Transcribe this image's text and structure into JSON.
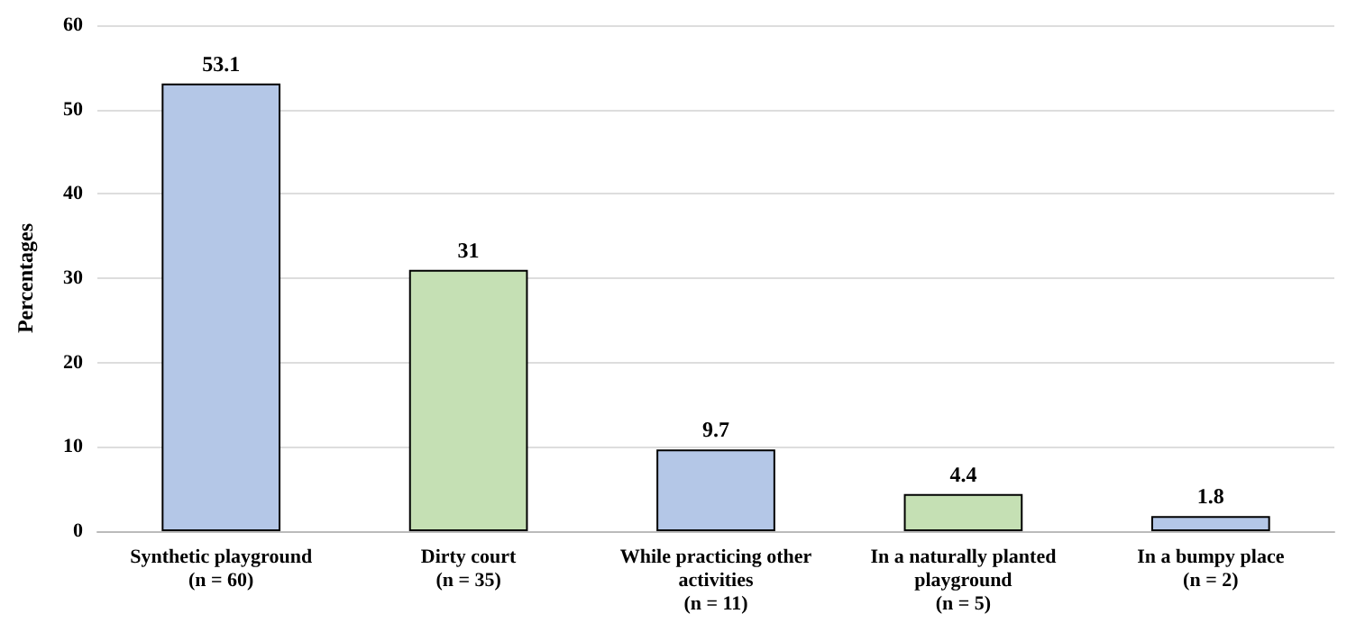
{
  "chart_data": {
    "type": "bar",
    "ylabel": "Percentages",
    "categories": [
      "Synthetic playground\n(n = 60)",
      "Dirty court\n(n = 35)",
      "While practicing other\nactivities\n(n = 11)",
      "In a naturally planted\nplayground\n(n = 5)",
      "In a bumpy place\n(n = 2)"
    ],
    "values": [
      53.1,
      31,
      9.7,
      4.4,
      1.8
    ],
    "colors": [
      "#b4c7e7",
      "#c5e0b4",
      "#b4c7e7",
      "#c5e0b4",
      "#b4c7e7"
    ],
    "ylim": [
      0,
      60
    ],
    "yticks": [
      0,
      10,
      20,
      30,
      40,
      50,
      60
    ],
    "grid": "y",
    "data_labels": true
  }
}
